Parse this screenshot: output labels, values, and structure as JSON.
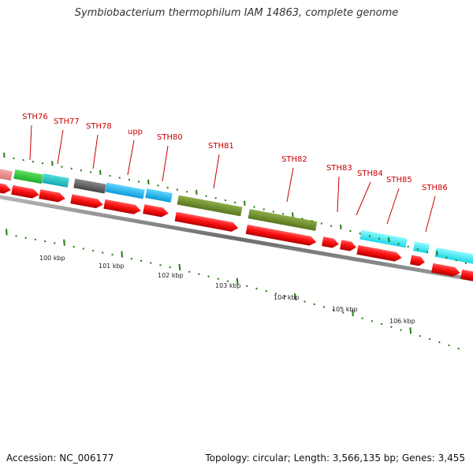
{
  "title": "Symbiobacterium thermophilum IAM 14863, complete genome",
  "footer": {
    "accession": "Accession: NC_006177",
    "stats": "Topology: circular; Length: 3,566,135 bp; Genes: 3,455"
  },
  "colors": {
    "label": "#cc0000",
    "tick": "#2a7a1a",
    "backbone": "#7a7a7a",
    "cds": "#ff1010"
  },
  "gene_labels": [
    "STH76",
    "STH77",
    "STH78",
    "upp",
    "STH80",
    "STH81",
    "STH82",
    "STH83",
    "STH84",
    "STH85",
    "STH86"
  ],
  "scale_labels": [
    "100 kbp",
    "101 kbp",
    "102 kbp",
    "103 kbp",
    "104 kbp",
    "105 kbp",
    "106 kbp"
  ]
}
